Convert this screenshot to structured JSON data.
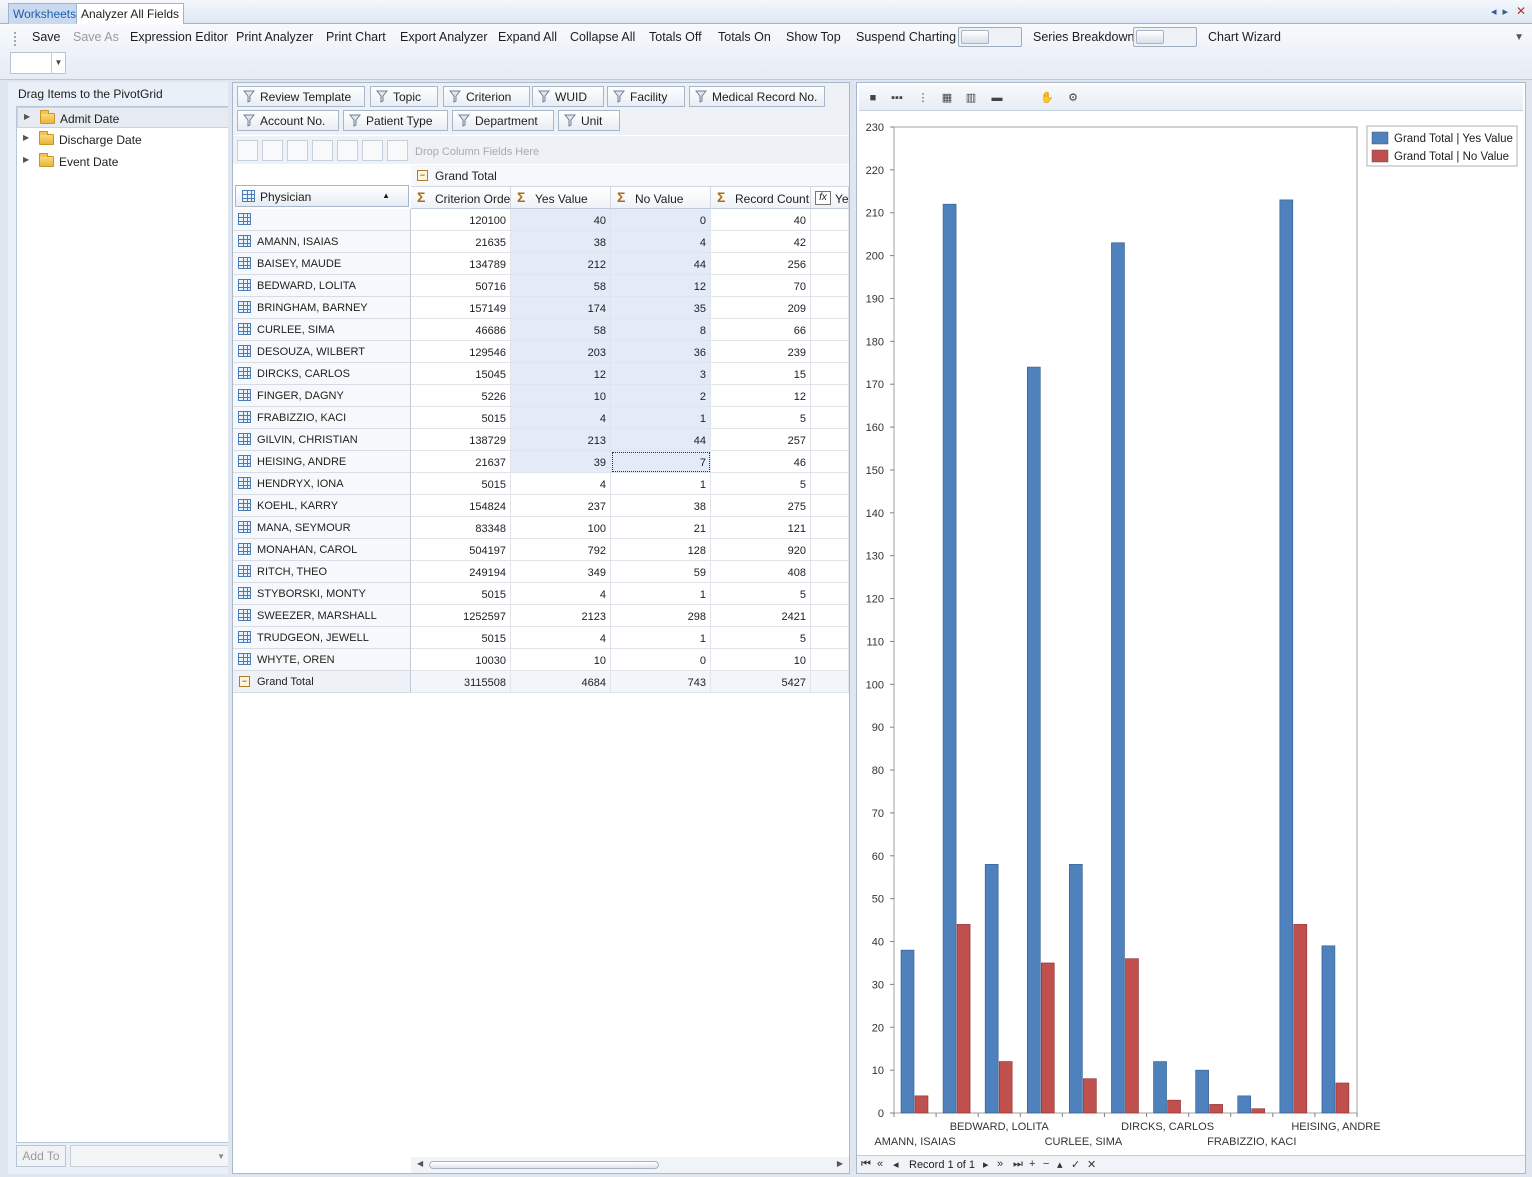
{
  "tabs": [
    {
      "label": "Worksheets"
    },
    {
      "label": "Analyzer All Fields"
    }
  ],
  "toolbar": {
    "save": "Save",
    "save_as": "Save As",
    "expression_editor": "Expression Editor",
    "print_analyzer": "Print Analyzer",
    "print_chart": "Print Chart",
    "export_analyzer": "Export Analyzer",
    "expand_all": "Expand All",
    "collapse_all": "Collapse All",
    "totals_off": "Totals Off",
    "totals_on": "Totals On",
    "show_top": "Show Top",
    "suspend_charting": "Suspend Charting",
    "series_breakdown": "Series Breakdown",
    "chart_wizard": "Chart Wizard"
  },
  "field_list": {
    "title": "Drag Items to the PivotGrid",
    "items": [
      "Admit Date",
      "Discharge Date",
      "Event Date"
    ],
    "add_to": "Add To"
  },
  "filters": [
    "Review Template",
    "Topic",
    "Criterion",
    "WUID",
    "Facility",
    "Medical Record No.",
    "Account No.",
    "Patient Type",
    "Department",
    "Unit"
  ],
  "column_area": {
    "hint": "Drop Column Fields Here"
  },
  "grid": {
    "grand_total_header": "Grand Total",
    "row_field": "Physician",
    "columns": [
      "Criterion Order",
      "Yes Value",
      "No Value",
      "Record Count",
      "Yes"
    ],
    "rows": [
      {
        "name": "",
        "values": [
          "120100",
          "40",
          "0",
          "40"
        ]
      },
      {
        "name": "AMANN, ISAIAS",
        "values": [
          "21635",
          "38",
          "4",
          "42"
        ]
      },
      {
        "name": "BAISEY, MAUDE",
        "values": [
          "134789",
          "212",
          "44",
          "256"
        ]
      },
      {
        "name": "BEDWARD, LOLITA",
        "values": [
          "50716",
          "58",
          "12",
          "70"
        ]
      },
      {
        "name": "BRINGHAM, BARNEY",
        "values": [
          "157149",
          "174",
          "35",
          "209"
        ]
      },
      {
        "name": "CURLEE, SIMA",
        "values": [
          "46686",
          "58",
          "8",
          "66"
        ]
      },
      {
        "name": "DESOUZA, WILBERT",
        "values": [
          "129546",
          "203",
          "36",
          "239"
        ]
      },
      {
        "name": "DIRCKS, CARLOS",
        "values": [
          "15045",
          "12",
          "3",
          "15"
        ]
      },
      {
        "name": "FINGER, DAGNY",
        "values": [
          "5226",
          "10",
          "2",
          "12"
        ]
      },
      {
        "name": "FRABIZZIO, KACI",
        "values": [
          "5015",
          "4",
          "1",
          "5"
        ]
      },
      {
        "name": "GILVIN, CHRISTIAN",
        "values": [
          "138729",
          "213",
          "44",
          "257"
        ]
      },
      {
        "name": "HEISING, ANDRE",
        "values": [
          "21637",
          "39",
          "7",
          "46"
        ]
      },
      {
        "name": "HENDRYX, IONA",
        "values": [
          "5015",
          "4",
          "1",
          "5"
        ]
      },
      {
        "name": "KOEHL, KARRY",
        "values": [
          "154824",
          "237",
          "38",
          "275"
        ]
      },
      {
        "name": "MANA, SEYMOUR",
        "values": [
          "83348",
          "100",
          "21",
          "121"
        ]
      },
      {
        "name": "MONAHAN, CAROL",
        "values": [
          "504197",
          "792",
          "128",
          "920"
        ]
      },
      {
        "name": "RITCH, THEO",
        "values": [
          "249194",
          "349",
          "59",
          "408"
        ]
      },
      {
        "name": "STYBORSKI, MONTY",
        "values": [
          "5015",
          "4",
          "1",
          "5"
        ]
      },
      {
        "name": "SWEEZER, MARSHALL",
        "values": [
          "1252597",
          "2123",
          "298",
          "2421"
        ]
      },
      {
        "name": "TRUDGEON, JEWELL",
        "values": [
          "5015",
          "4",
          "1",
          "5"
        ]
      },
      {
        "name": "WHYTE, OREN",
        "values": [
          "10030",
          "10",
          "0",
          "10"
        ]
      }
    ],
    "total": {
      "name": "Grand Total",
      "values": [
        "3115508",
        "4684",
        "743",
        "5427"
      ]
    }
  },
  "colors": {
    "yes": "#4f81bd",
    "no": "#c0504d"
  },
  "chart_data": {
    "type": "bar",
    "categories": [
      "AMANN, ISAIAS",
      "BAISEY, MAUDE",
      "BEDWARD, LOLITA",
      "BRINGHAM, BARNEY",
      "CURLEE, SIMA",
      "DESOUZA, WILBERT",
      "DIRCKS, CARLOS",
      "FINGER, DAGNY",
      "FRABIZZIO, KACI",
      "GILVIN, CHRISTIAN",
      "HEISING, ANDRE"
    ],
    "tick_labels_shown": [
      "AMANN, ISAIAS",
      "BEDWARD, LOLITA",
      "CURLEE, SIMA",
      "DIRCKS, CARLOS",
      "FRABIZZIO, KACI",
      "HEISING, ANDRE"
    ],
    "series": [
      {
        "name": "Grand Total | Yes Value",
        "values": [
          38,
          212,
          58,
          174,
          58,
          203,
          12,
          10,
          4,
          213,
          39
        ]
      },
      {
        "name": "Grand Total | No Value",
        "values": [
          4,
          44,
          12,
          35,
          8,
          36,
          3,
          2,
          1,
          44,
          7
        ]
      }
    ],
    "ylim": [
      0,
      230
    ],
    "yticks": [
      0,
      10,
      20,
      30,
      40,
      50,
      60,
      70,
      80,
      90,
      100,
      110,
      120,
      130,
      140,
      150,
      160,
      170,
      180,
      190,
      200,
      210,
      220,
      230
    ],
    "legend": "top-right",
    "grid": false
  },
  "chart_footer": {
    "record": "Record 1 of 1"
  }
}
